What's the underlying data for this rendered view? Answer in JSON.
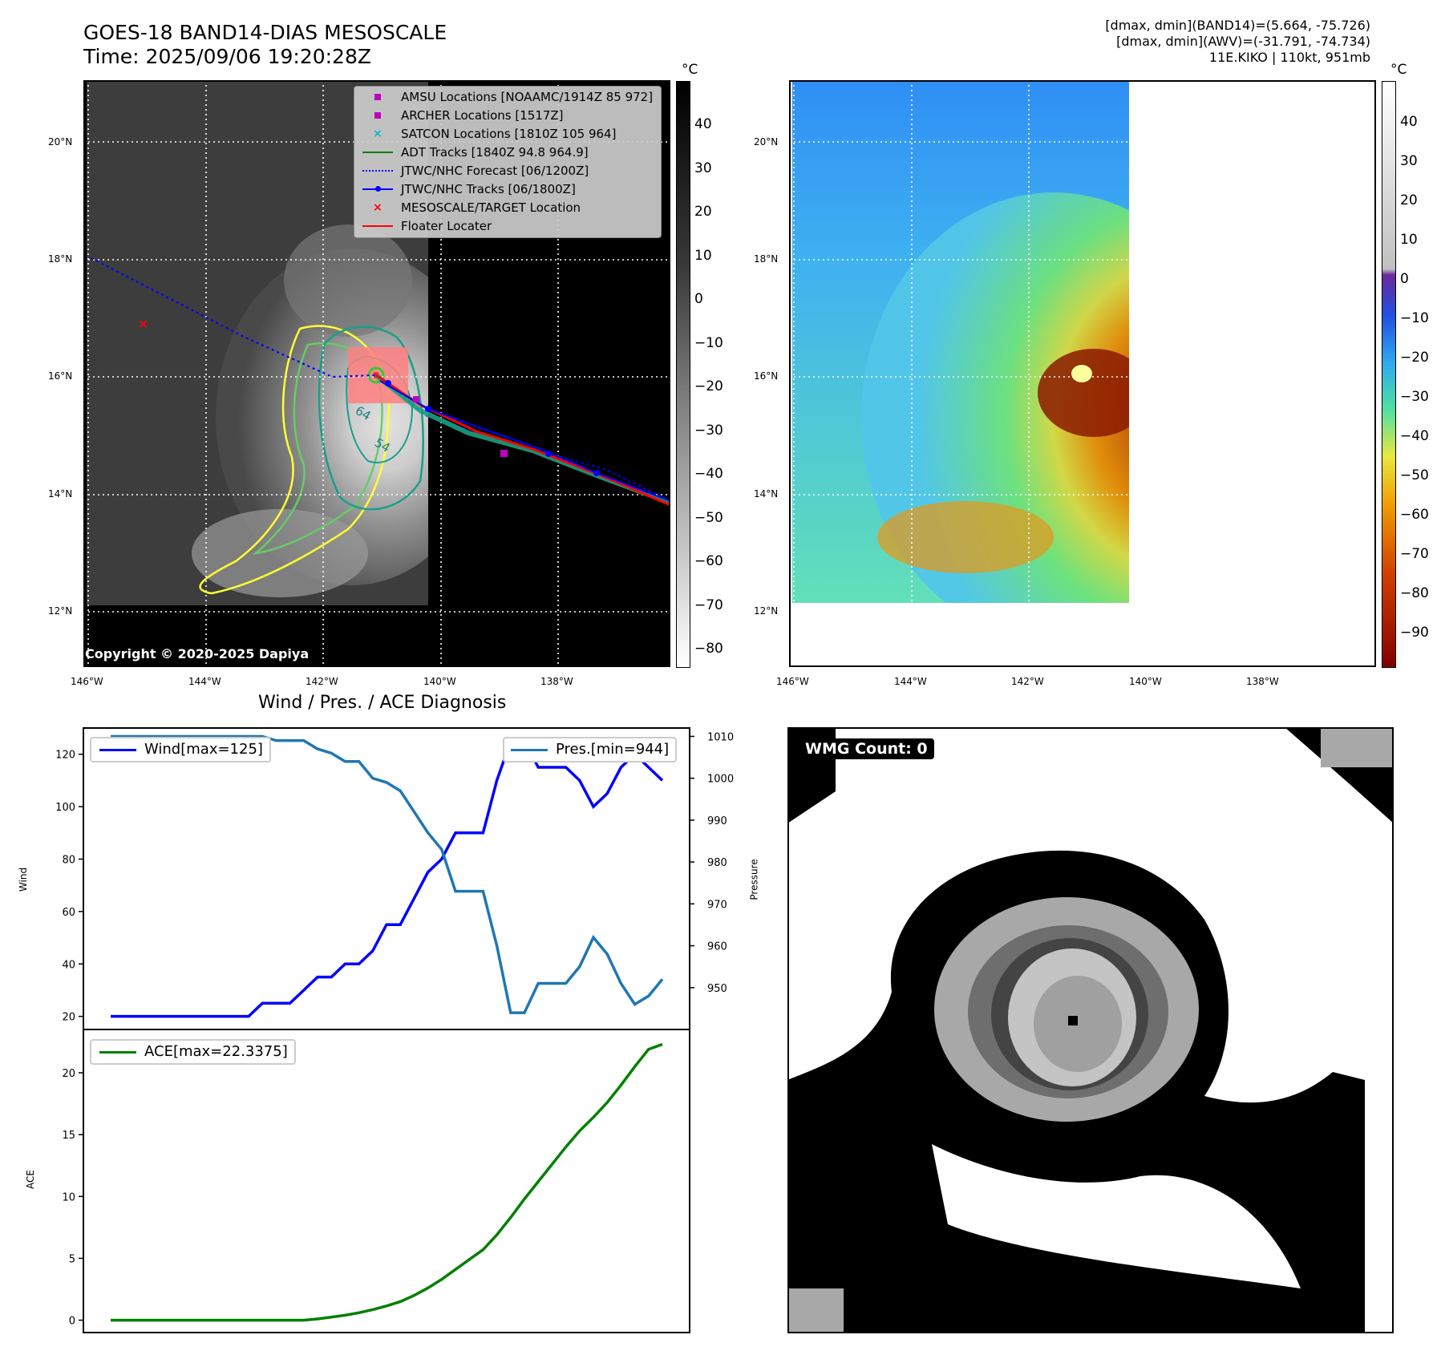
{
  "header": {
    "title_line1": "GOES-18 BAND14-DIAS MESOSCALE",
    "title_line2": "Time: 2025/09/06 19:20:28Z",
    "range_band14": "[dmax, dmin](BAND14)=(5.664, -75.726)",
    "range_awv": "[dmax, dmin](AWV)=(-31.791, -74.734)",
    "storm_info": "11E.KIKO | 110kt, 951mb"
  },
  "map_axes": {
    "lat_labels": [
      "20°N",
      "18°N",
      "16°N",
      "14°N",
      "12°N"
    ],
    "lon_labels": [
      "146°W",
      "144°W",
      "142°W",
      "140°W",
      "138°W"
    ]
  },
  "ir_panel": {
    "colorbar_unit": "°C",
    "colorbar_ticks": [
      "40",
      "30",
      "20",
      "10",
      "0",
      "−10",
      "−20",
      "−30",
      "−40",
      "−50",
      "−60",
      "−70",
      "−80"
    ],
    "copyright": "Copyright © 2020-2025 Dapiya",
    "contour_labels": [
      "64",
      "54"
    ],
    "legend": [
      {
        "label": "AMSU Locations [NOAAMC/1914Z 85 972]",
        "marker": "square",
        "color": "#bf00bf"
      },
      {
        "label": "ARCHER Locations [1517Z]",
        "marker": "square",
        "color": "#bf00bf"
      },
      {
        "label": "SATCON Locations [1810Z 105 964]",
        "marker": "x",
        "color": "#00bfbf"
      },
      {
        "label": "ADT Tracks [1840Z 94.8 964.9]",
        "marker": "line",
        "color": "#008000"
      },
      {
        "label": "JTWC/NHC Forecast [06/1200Z]",
        "marker": "dotted",
        "color": "#0000ff"
      },
      {
        "label": "JTWC/NHC Tracks [06/1800Z]",
        "marker": "line-dot",
        "color": "#0000ff"
      },
      {
        "label": "MESOSCALE/TARGET Location",
        "marker": "x",
        "color": "#ff0000"
      },
      {
        "label": "Floater Locater",
        "marker": "line",
        "color": "#ff0000"
      }
    ]
  },
  "awv_panel": {
    "colorbar_unit": "°C",
    "colorbar_ticks": [
      "40",
      "30",
      "20",
      "10",
      "0",
      "−10",
      "−20",
      "−30",
      "−40",
      "−50",
      "−60",
      "−70",
      "−80",
      "−90"
    ]
  },
  "wmg_panel": {
    "label": "WMG Count: 0"
  },
  "chart_data": [
    {
      "type": "line",
      "title": "Wind / Pres. / ACE Diagnosis",
      "ylabel": "Wind",
      "ylabel2": "Pressure",
      "ylim": [
        15,
        130
      ],
      "ylim2": [
        940,
        1012
      ],
      "yticks": [
        20,
        40,
        60,
        80,
        100,
        120
      ],
      "yticks2": [
        950,
        960,
        970,
        980,
        990,
        1000,
        1010
      ],
      "series": [
        {
          "name": "Wind",
          "legend": "Wind[max=125]",
          "color": "#0000ff",
          "values": [
            20,
            20,
            20,
            20,
            20,
            20,
            20,
            20,
            20,
            20,
            20,
            25,
            25,
            25,
            30,
            35,
            35,
            40,
            40,
            45,
            55,
            55,
            65,
            75,
            80,
            90,
            90,
            90,
            110,
            125,
            125,
            115,
            115,
            115,
            110,
            100,
            105,
            115,
            120,
            115,
            110
          ]
        },
        {
          "name": "Pressure",
          "legend": "Pres.[min=944]",
          "color": "#1f77b4",
          "values": [
            1010,
            1010,
            1010,
            1010,
            1010,
            1010,
            1010,
            1010,
            1010,
            1010,
            1010,
            1010,
            1009,
            1009,
            1009,
            1007,
            1006,
            1004,
            1004,
            1000,
            999,
            997,
            992,
            987,
            983,
            973,
            973,
            973,
            960,
            944,
            944,
            951,
            951,
            951,
            955,
            962,
            958,
            951,
            946,
            948,
            952
          ]
        }
      ]
    },
    {
      "type": "line",
      "ylabel": "ACE",
      "ylim": [
        -1,
        23.5
      ],
      "yticks": [
        0,
        5,
        10,
        15,
        20
      ],
      "series": [
        {
          "name": "ACE",
          "legend": "ACE[max=22.3375]",
          "color": "#008000",
          "values": [
            0,
            0,
            0,
            0,
            0,
            0,
            0,
            0,
            0,
            0,
            0,
            0,
            0,
            0,
            0,
            0.1,
            0.25,
            0.4,
            0.6,
            0.85,
            1.15,
            1.5,
            2.0,
            2.6,
            3.3,
            4.1,
            4.9,
            5.7,
            6.9,
            8.3,
            9.8,
            11.2,
            12.6,
            14.0,
            15.3,
            16.4,
            17.6,
            19.0,
            20.5,
            21.9,
            22.3
          ]
        }
      ]
    }
  ]
}
